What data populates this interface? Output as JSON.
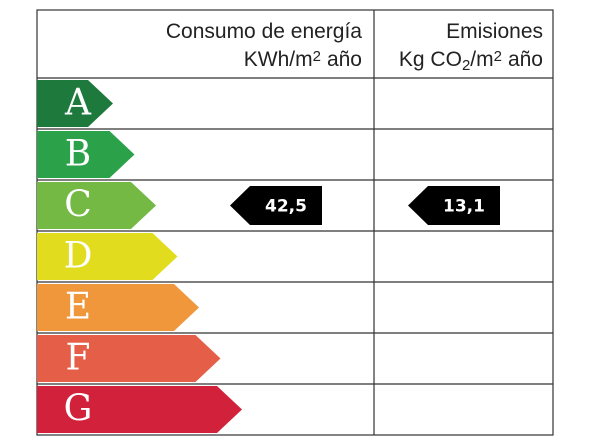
{
  "header": {
    "consumption": {
      "title": "Consumo de energía",
      "unit": [
        {
          "text": "KWh/m"
        },
        {
          "text": "2",
          "script": "super"
        },
        {
          "text": "año"
        }
      ]
    },
    "emissions": {
      "title": "Emisiones",
      "unit": [
        {
          "text": "Kg CO"
        },
        {
          "text": "2",
          "script": "sub"
        },
        {
          "text": "/m"
        },
        {
          "text": "2",
          "script": "super"
        },
        {
          "text": "año"
        }
      ]
    }
  },
  "ratings": [
    {
      "letter": "A",
      "color": "#1e7a3c"
    },
    {
      "letter": "B",
      "color": "#2ba24a"
    },
    {
      "letter": "C",
      "color": "#73b944"
    },
    {
      "letter": "D",
      "color": "#e2dc1f"
    },
    {
      "letter": "E",
      "color": "#ef973a"
    },
    {
      "letter": "F",
      "color": "#e55f48"
    },
    {
      "letter": "G",
      "color": "#d2213b"
    }
  ],
  "consumption": {
    "rating": "C",
    "label": "42,5"
  },
  "emissions": {
    "rating": "C",
    "label": "13,1"
  }
}
